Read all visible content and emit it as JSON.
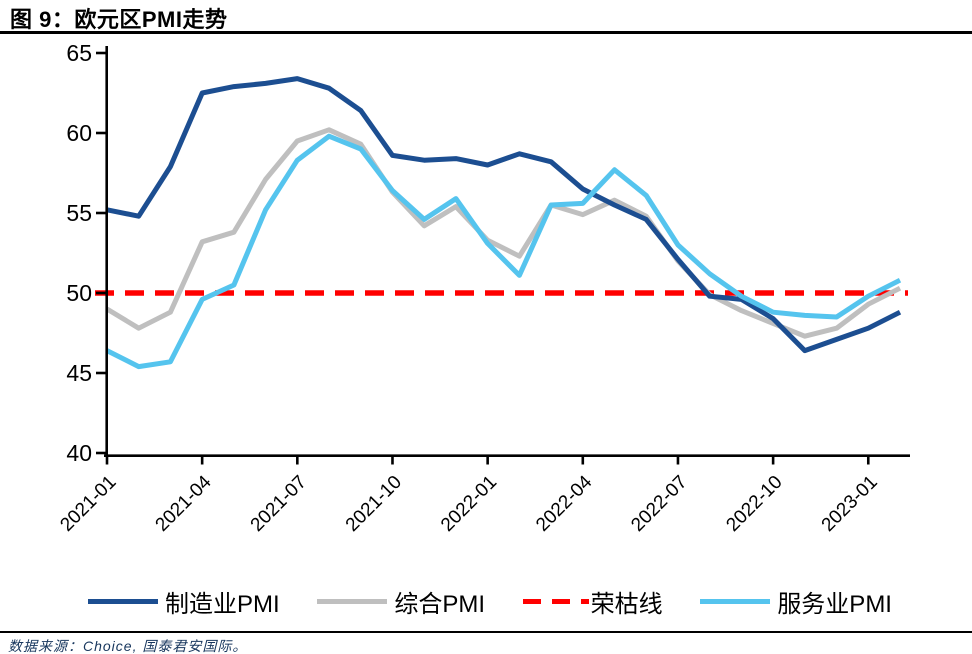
{
  "title": "图 9：欧元区PMI走势",
  "source_note": "数据来源：Choice, 国泰君安国际。",
  "colors": {
    "manufacturing": "#1c4e91",
    "composite": "#bfbfbf",
    "services": "#55c4ee",
    "threshold": "#ff0000",
    "axis": "#000000",
    "title_text": "#000000",
    "source_text": "#17365d"
  },
  "legend": {
    "items": [
      {
        "id": "manufacturing-pmi",
        "label": "制造业PMI",
        "color": "#1c4e91",
        "line_style": "solid"
      },
      {
        "id": "composite-pmi",
        "label": "综合PMI",
        "color": "#bfbfbf",
        "line_style": "solid"
      },
      {
        "id": "threshold",
        "label": "荣枯线",
        "color": "#ff0000",
        "line_style": "dashed"
      },
      {
        "id": "services-pmi",
        "label": "服务业PMI",
        "color": "#55c4ee",
        "line_style": "solid"
      }
    ]
  },
  "chart_data": {
    "type": "line",
    "title": "欧元区PMI走势",
    "xlabel": "",
    "ylabel": "",
    "ylim": [
      40,
      65
    ],
    "y_ticks": [
      40,
      45,
      50,
      55,
      60,
      65
    ],
    "grid": false,
    "legend_position": "bottom",
    "x": [
      "2021-01",
      "2021-02",
      "2021-03",
      "2021-04",
      "2021-05",
      "2021-06",
      "2021-07",
      "2021-08",
      "2021-09",
      "2021-10",
      "2021-11",
      "2021-12",
      "2022-01",
      "2022-02",
      "2022-03",
      "2022-04",
      "2022-05",
      "2022-06",
      "2022-07",
      "2022-08",
      "2022-09",
      "2022-10",
      "2022-11",
      "2022-12",
      "2023-01",
      "2023-02"
    ],
    "x_tick_labels": [
      "2021-01",
      "2021-04",
      "2021-07",
      "2021-10",
      "2022-01",
      "2022-04",
      "2022-07",
      "2022-10",
      "2023-01"
    ],
    "series": [
      {
        "id": "manufacturing-pmi",
        "name": "制造业PMI",
        "color": "#1c4e91",
        "line_style": "solid",
        "z": 2,
        "values": [
          55.2,
          54.8,
          57.9,
          62.5,
          62.9,
          63.1,
          63.4,
          62.8,
          61.4,
          58.6,
          58.3,
          58.4,
          58.0,
          58.7,
          58.2,
          56.5,
          55.5,
          54.6,
          52.1,
          49.8,
          49.6,
          48.4,
          46.4,
          47.1,
          47.8,
          48.8
        ]
      },
      {
        "id": "composite-pmi",
        "name": "综合PMI",
        "color": "#bfbfbf",
        "line_style": "solid",
        "z": 1,
        "values": [
          49.0,
          47.8,
          48.8,
          53.2,
          53.8,
          57.1,
          59.5,
          60.2,
          59.3,
          56.3,
          54.2,
          55.4,
          53.3,
          52.3,
          55.5,
          54.9,
          55.8,
          54.8,
          52.0,
          49.9,
          48.9,
          48.1,
          47.3,
          47.8,
          49.3,
          50.3
        ]
      },
      {
        "id": "services-pmi",
        "name": "服务业PMI",
        "color": "#55c4ee",
        "line_style": "solid",
        "z": 3,
        "values": [
          46.4,
          45.4,
          45.7,
          49.6,
          50.5,
          55.2,
          58.3,
          59.8,
          59.0,
          56.4,
          54.6,
          55.9,
          53.1,
          51.1,
          55.5,
          55.6,
          57.7,
          56.1,
          53.0,
          51.2,
          49.8,
          48.8,
          48.6,
          48.5,
          49.8,
          50.8
        ]
      }
    ],
    "threshold_line": {
      "id": "threshold",
      "name": "荣枯线",
      "value": 50,
      "color": "#ff0000",
      "line_style": "dashed"
    }
  }
}
